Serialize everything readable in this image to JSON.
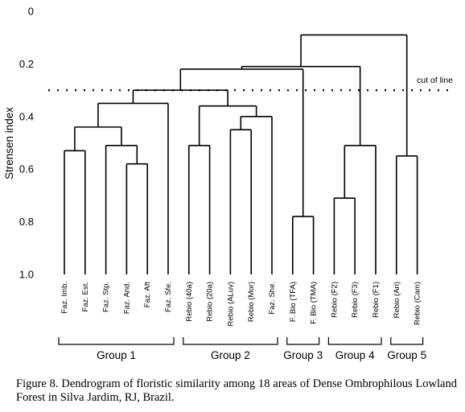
{
  "chart_data": {
    "type": "dendrogram",
    "ylabel": "Strensen index",
    "ylim": [
      0,
      1.0
    ],
    "y_inverted": true,
    "yticks": [
      "0",
      "0.2",
      "0.4",
      "0.6",
      "0.8",
      "1.0"
    ],
    "ytick_values": [
      0,
      0.2,
      0.4,
      0.6,
      0.8,
      1.0
    ],
    "leaves": [
      "Faz. Imb.",
      "Faz. Est.",
      "Faz. Stp.",
      "Faz. And.",
      "Faz. Aft",
      "Faz. Sfe.",
      "Rebio (40a)",
      "Rebio (20a)",
      "Rebio (ALuv)",
      "Rebio (Mor)",
      "Faz. She.",
      "F. Bio (TFA)",
      "F. Bio (TMA)",
      "Rebio (F2)",
      "Rebio (F3)",
      "Rebio (F1)",
      "Rebio (Ari)",
      "Rebio (Cam)"
    ],
    "merges": [
      {
        "left": "Faz. Imb.",
        "right": "Faz. Est.",
        "height": 0.53
      },
      {
        "left": "Faz. And.",
        "right": "Faz. Aft",
        "height": 0.58
      },
      {
        "left": "Faz. Stp.",
        "right": "Faz. And.+Faz. Aft",
        "height": 0.51
      },
      {
        "left": "Faz. Imb.+Faz. Est.",
        "right": "Faz. Stp.+Faz. And.+Faz. Aft",
        "height": 0.44
      },
      {
        "left": "Faz. Imb.–Faz. Aft",
        "right": "Faz. Sfe.",
        "height": 0.35
      },
      {
        "left": "Rebio (40a)",
        "right": "Rebio (20a)",
        "height": 0.51
      },
      {
        "left": "Rebio (ALuv)",
        "right": "Rebio (Mor)",
        "height": 0.45
      },
      {
        "left": "Rebio (ALuv)+Rebio (Mor)",
        "right": "Faz. She.",
        "height": 0.4
      },
      {
        "left": "Rebio (40a)+Rebio (20a)",
        "right": "Rebio (ALuv)+Rebio (Mor)+Faz. She.",
        "height": 0.36
      },
      {
        "left": "Group 1",
        "right": "Group 2",
        "height": 0.3
      },
      {
        "left": "F. Bio (TFA)",
        "right": "F. Bio (TMA)",
        "height": 0.78
      },
      {
        "left": "Rebio (F2)",
        "right": "Rebio (F3)",
        "height": 0.71
      },
      {
        "left": "Rebio (F2)+Rebio (F3)",
        "right": "Rebio (F1)",
        "height": 0.51
      },
      {
        "left": "Rebio (Ari)",
        "right": "Rebio (Cam)",
        "height": 0.55
      },
      {
        "left": "Group 1+Group 2",
        "right": "Group 3",
        "height": 0.22
      },
      {
        "left": "Groups 1–3",
        "right": "Group 4",
        "height": 0.21
      },
      {
        "left": "Groups 1–4",
        "right": "Group 5",
        "height": 0.09
      }
    ],
    "cutoff": {
      "value": 0.3,
      "label": "cut of line"
    },
    "groups": [
      {
        "label": "Group 1",
        "from": 0,
        "to": 5
      },
      {
        "label": "Group 2",
        "from": 6,
        "to": 10
      },
      {
        "label": "Group 3",
        "from": 11,
        "to": 12
      },
      {
        "label": "Group 4",
        "from": 13,
        "to": 15
      },
      {
        "label": "Group 5",
        "from": 16,
        "to": 17
      }
    ]
  },
  "caption": "Figure 8. Dendrogram of floristic similarity among 18 areas of Dense Ombrophilous Lowland Forest in Silva Jardim, RJ, Brazil."
}
